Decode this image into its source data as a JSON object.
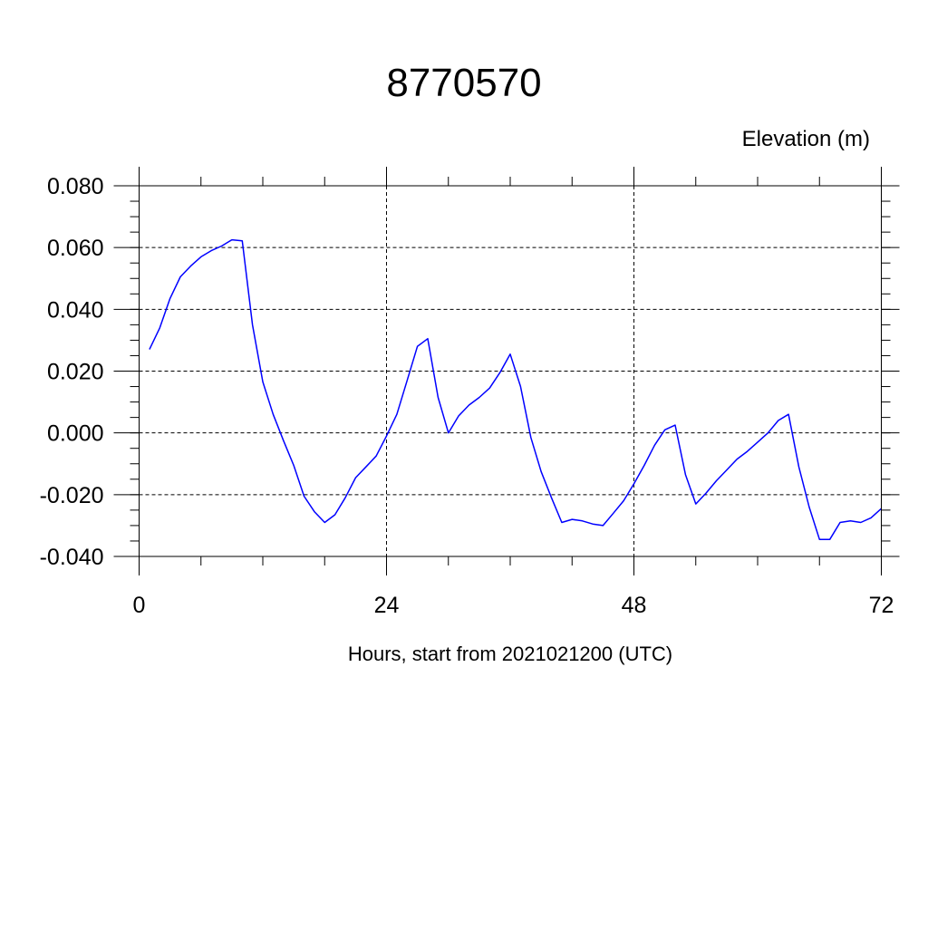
{
  "chart_data": {
    "type": "line",
    "title": "8770570",
    "ylabel": "Elevation (m)",
    "xlabel": "Hours, start from 2021021200 (UTC)",
    "xlim": [
      0,
      72
    ],
    "ylim": [
      -0.04,
      0.08
    ],
    "x_ticks": [
      0,
      24,
      48,
      72
    ],
    "x_tick_labels": [
      "0",
      "24",
      "48",
      "72"
    ],
    "y_ticks": [
      -0.04,
      -0.02,
      0.0,
      0.02,
      0.04,
      0.06,
      0.08
    ],
    "y_tick_labels": [
      "-0.040",
      "-0.020",
      "0.000",
      "0.020",
      "0.040",
      "0.060",
      "0.080"
    ],
    "grid": true,
    "series": [
      {
        "color": "#0000ff",
        "x": [
          1,
          2,
          3,
          4,
          5,
          6,
          7,
          8,
          9,
          10,
          11,
          12,
          13,
          14,
          15,
          16,
          17,
          18,
          19,
          20,
          21,
          22,
          23,
          24,
          25,
          26,
          27,
          28,
          29,
          30,
          31,
          32,
          33,
          34,
          35,
          36,
          37,
          38,
          39,
          40,
          41,
          42,
          43,
          44,
          45,
          46,
          47,
          48,
          49,
          50,
          51,
          52,
          53,
          54,
          55,
          56,
          57,
          58,
          59,
          60,
          61,
          62,
          63,
          64,
          65,
          66,
          67,
          68,
          69,
          70,
          71,
          72
        ],
        "values": [
          0.027,
          0.034,
          0.0435,
          0.0505,
          0.054,
          0.057,
          0.059,
          0.0605,
          0.0625,
          0.0622,
          0.035,
          0.0165,
          0.006,
          -0.0025,
          -0.0105,
          -0.0205,
          -0.0255,
          -0.029,
          -0.0265,
          -0.021,
          -0.0145,
          -0.011,
          -0.0075,
          -0.001,
          0.006,
          0.017,
          0.028,
          0.0305,
          0.0115,
          0.0,
          0.0055,
          0.009,
          0.0115,
          0.0145,
          0.0195,
          0.0255,
          0.015,
          -0.0015,
          -0.0125,
          -0.021,
          -0.029,
          -0.028,
          -0.0285,
          -0.0295,
          -0.03,
          -0.026,
          -0.022,
          -0.0165,
          -0.0105,
          -0.004,
          0.001,
          0.0025,
          -0.0135,
          -0.023,
          -0.0195,
          -0.0155,
          -0.012,
          -0.0085,
          -0.006,
          -0.003,
          0.0,
          0.004,
          0.006,
          -0.011,
          -0.024,
          -0.0345,
          -0.0345,
          -0.029,
          -0.0285,
          -0.029,
          -0.0275,
          -0.0245
        ]
      }
    ]
  }
}
